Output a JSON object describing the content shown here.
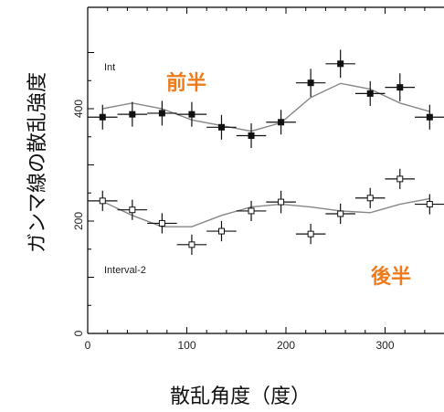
{
  "chart_data": {
    "type": "scatter",
    "ylabel": "ガンマ線の散乱強度",
    "xlabel": "散乱角度（度）",
    "xlim": [
      0,
      360
    ],
    "ylim": [
      0,
      520
    ],
    "x_ticks": [
      "0",
      "100",
      "200",
      "300"
    ],
    "y_ticks": [
      "0",
      "200",
      "400"
    ],
    "colors": {
      "accent": "#f07a1a",
      "data": "#111111",
      "model": "#888888"
    },
    "series": [
      {
        "name": "Int",
        "half_label": "前半",
        "marker": "filled-square",
        "x": [
          15,
          45,
          75,
          105,
          135,
          165,
          195,
          225,
          255,
          285,
          315,
          345
        ],
        "y": [
          385,
          390,
          392,
          390,
          367,
          352,
          376,
          446,
          480,
          427,
          438,
          385
        ],
        "yerr": [
          22,
          22,
          22,
          22,
          22,
          22,
          22,
          25,
          25,
          22,
          25,
          22
        ],
        "model_y": [
          400,
          410,
          400,
          380,
          370,
          360,
          375,
          420,
          445,
          435,
          410,
          395
        ]
      },
      {
        "name": "Interval-2",
        "half_label": "後半",
        "marker": "open-square",
        "x": [
          15,
          45,
          75,
          105,
          135,
          165,
          195,
          225,
          255,
          285,
          315,
          345
        ],
        "y": [
          236,
          220,
          196,
          158,
          182,
          218,
          234,
          177,
          213,
          241,
          275,
          230
        ],
        "yerr": [
          18,
          18,
          18,
          18,
          18,
          18,
          20,
          18,
          18,
          18,
          18,
          18
        ],
        "model_y": [
          235,
          210,
          190,
          190,
          210,
          225,
          230,
          225,
          218,
          215,
          230,
          240
        ]
      }
    ]
  }
}
